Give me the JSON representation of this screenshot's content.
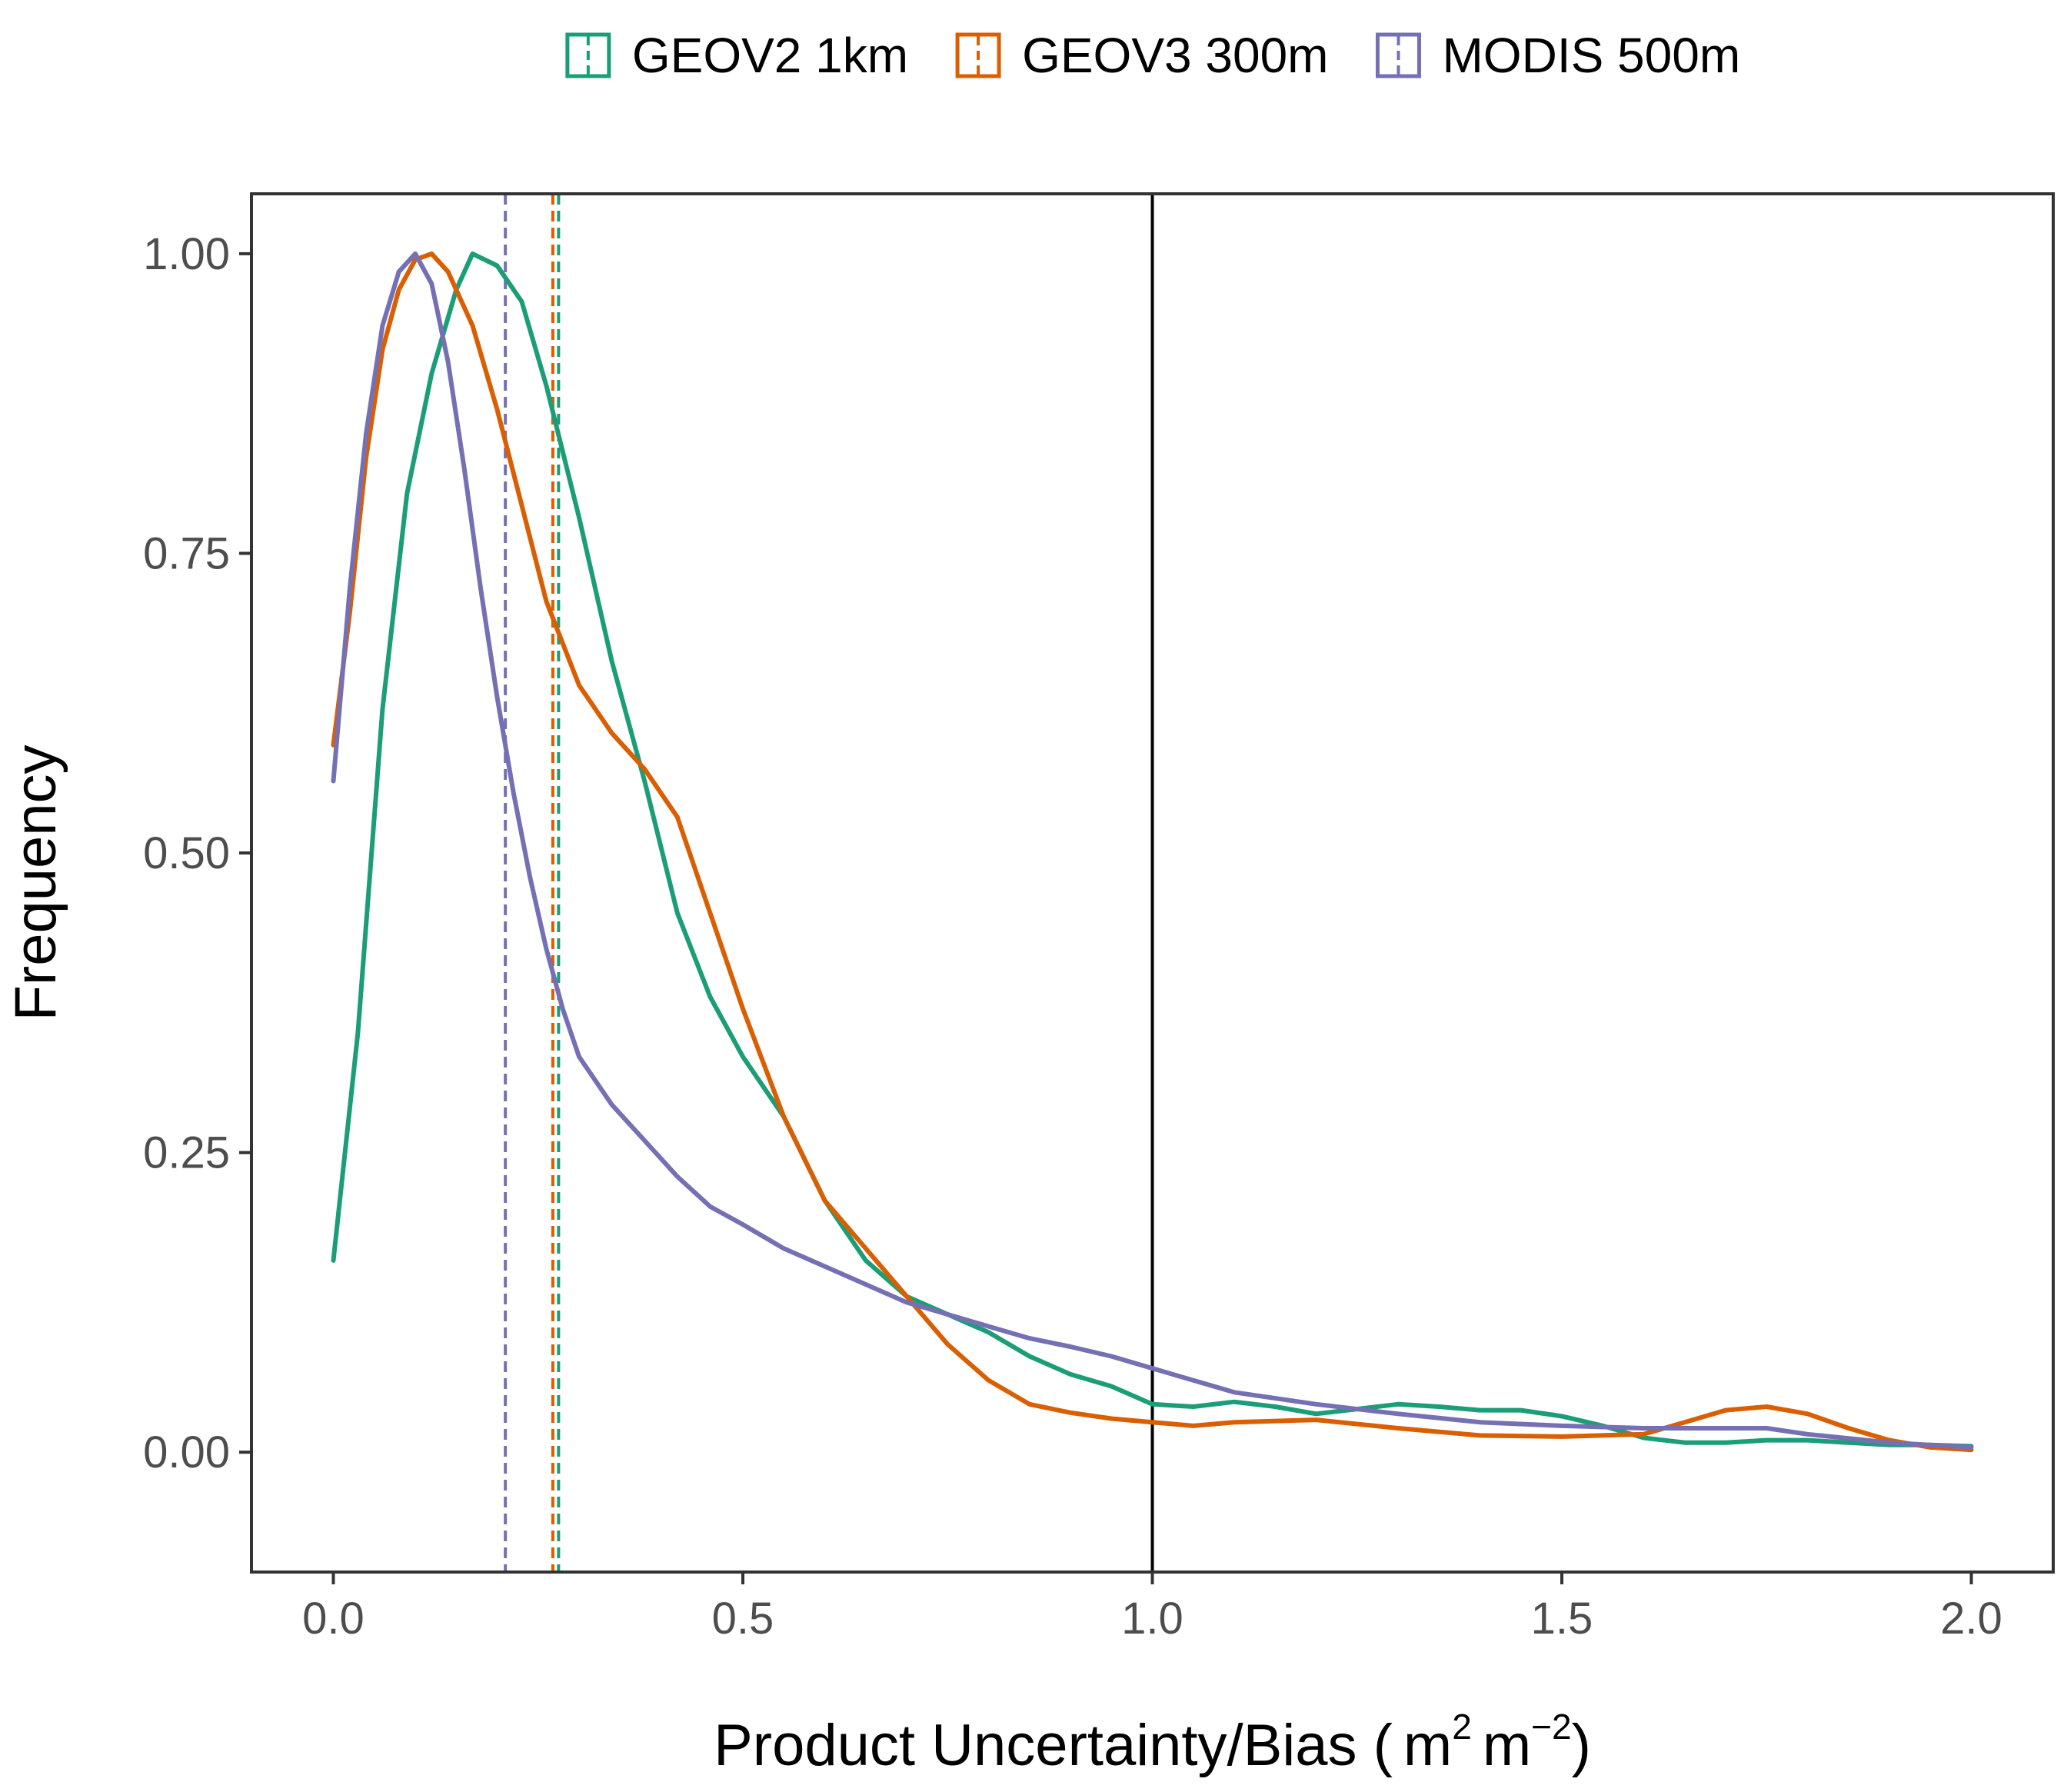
{
  "chart_data": {
    "type": "line",
    "xlabel": "Product Uncertainty/Bias (",
    "xlabel_units": {
      "base1": "m",
      "exp1": "2",
      "base2": "m",
      "exp2": "−2",
      "close": ")"
    },
    "ylabel": "Frequency",
    "xlim": [
      -0.1,
      2.1
    ],
    "ylim": [
      -0.1,
      1.05
    ],
    "x_ticks": [
      0.0,
      0.5,
      1.0,
      1.5,
      2.0
    ],
    "x_tick_labels": [
      "0.0",
      "0.5",
      "1.0",
      "1.5",
      "2.0"
    ],
    "y_ticks": [
      0.0,
      0.25,
      0.5,
      0.75,
      1.0
    ],
    "y_tick_labels": [
      "0.00",
      "0.25",
      "0.50",
      "0.75",
      "1.00"
    ],
    "reference_line": {
      "x": 1.0,
      "color": "#000000",
      "style": "solid"
    },
    "legend_position": "top",
    "series": [
      {
        "name": "GEOV2 1km",
        "color": "#1b9e77",
        "mean_line": 0.275,
        "points": [
          [
            0.0,
            0.16
          ],
          [
            0.03,
            0.35
          ],
          [
            0.06,
            0.62
          ],
          [
            0.09,
            0.8
          ],
          [
            0.12,
            0.9
          ],
          [
            0.15,
            0.97
          ],
          [
            0.17,
            1.0
          ],
          [
            0.2,
            0.99
          ],
          [
            0.23,
            0.96
          ],
          [
            0.26,
            0.89
          ],
          [
            0.3,
            0.78
          ],
          [
            0.34,
            0.66
          ],
          [
            0.38,
            0.56
          ],
          [
            0.42,
            0.45
          ],
          [
            0.46,
            0.38
          ],
          [
            0.5,
            0.33
          ],
          [
            0.55,
            0.28
          ],
          [
            0.6,
            0.21
          ],
          [
            0.65,
            0.16
          ],
          [
            0.7,
            0.13
          ],
          [
            0.75,
            0.115
          ],
          [
            0.8,
            0.1
          ],
          [
            0.85,
            0.08
          ],
          [
            0.9,
            0.065
          ],
          [
            0.95,
            0.055
          ],
          [
            1.0,
            0.04
          ],
          [
            1.05,
            0.038
          ],
          [
            1.1,
            0.042
          ],
          [
            1.15,
            0.038
          ],
          [
            1.2,
            0.032
          ],
          [
            1.25,
            0.036
          ],
          [
            1.3,
            0.04
          ],
          [
            1.35,
            0.038
          ],
          [
            1.4,
            0.035
          ],
          [
            1.45,
            0.035
          ],
          [
            1.5,
            0.03
          ],
          [
            1.55,
            0.022
          ],
          [
            1.6,
            0.012
          ],
          [
            1.65,
            0.008
          ],
          [
            1.7,
            0.008
          ],
          [
            1.75,
            0.01
          ],
          [
            1.8,
            0.01
          ],
          [
            1.85,
            0.008
          ],
          [
            1.9,
            0.006
          ],
          [
            1.95,
            0.006
          ],
          [
            2.0,
            0.005
          ]
        ]
      },
      {
        "name": "GEOV3 300m",
        "color": "#d95f02",
        "mean_line": 0.268,
        "points": [
          [
            0.0,
            0.59
          ],
          [
            0.02,
            0.7
          ],
          [
            0.04,
            0.83
          ],
          [
            0.06,
            0.92
          ],
          [
            0.08,
            0.97
          ],
          [
            0.1,
            0.995
          ],
          [
            0.12,
            1.0
          ],
          [
            0.14,
            0.985
          ],
          [
            0.17,
            0.94
          ],
          [
            0.2,
            0.87
          ],
          [
            0.23,
            0.79
          ],
          [
            0.26,
            0.71
          ],
          [
            0.3,
            0.64
          ],
          [
            0.34,
            0.6
          ],
          [
            0.38,
            0.57
          ],
          [
            0.42,
            0.53
          ],
          [
            0.46,
            0.45
          ],
          [
            0.5,
            0.37
          ],
          [
            0.55,
            0.28
          ],
          [
            0.6,
            0.21
          ],
          [
            0.65,
            0.17
          ],
          [
            0.7,
            0.13
          ],
          [
            0.75,
            0.09
          ],
          [
            0.8,
            0.06
          ],
          [
            0.85,
            0.04
          ],
          [
            0.9,
            0.033
          ],
          [
            0.95,
            0.028
          ],
          [
            1.0,
            0.025
          ],
          [
            1.05,
            0.022
          ],
          [
            1.1,
            0.025
          ],
          [
            1.2,
            0.027
          ],
          [
            1.3,
            0.02
          ],
          [
            1.4,
            0.014
          ],
          [
            1.5,
            0.013
          ],
          [
            1.6,
            0.015
          ],
          [
            1.65,
            0.025
          ],
          [
            1.7,
            0.035
          ],
          [
            1.75,
            0.038
          ],
          [
            1.8,
            0.032
          ],
          [
            1.85,
            0.02
          ],
          [
            1.9,
            0.01
          ],
          [
            1.95,
            0.004
          ],
          [
            2.0,
            0.002
          ]
        ]
      },
      {
        "name": "MODIS 500m",
        "color": "#7570b3",
        "mean_line": 0.21,
        "points": [
          [
            0.0,
            0.56
          ],
          [
            0.02,
            0.72
          ],
          [
            0.04,
            0.85
          ],
          [
            0.06,
            0.94
          ],
          [
            0.08,
            0.985
          ],
          [
            0.1,
            1.0
          ],
          [
            0.12,
            0.975
          ],
          [
            0.14,
            0.91
          ],
          [
            0.16,
            0.82
          ],
          [
            0.18,
            0.72
          ],
          [
            0.2,
            0.63
          ],
          [
            0.22,
            0.55
          ],
          [
            0.24,
            0.48
          ],
          [
            0.26,
            0.42
          ],
          [
            0.28,
            0.37
          ],
          [
            0.3,
            0.33
          ],
          [
            0.34,
            0.29
          ],
          [
            0.38,
            0.26
          ],
          [
            0.42,
            0.23
          ],
          [
            0.46,
            0.205
          ],
          [
            0.5,
            0.19
          ],
          [
            0.55,
            0.17
          ],
          [
            0.6,
            0.155
          ],
          [
            0.65,
            0.14
          ],
          [
            0.7,
            0.125
          ],
          [
            0.75,
            0.115
          ],
          [
            0.8,
            0.105
          ],
          [
            0.85,
            0.095
          ],
          [
            0.9,
            0.088
          ],
          [
            0.95,
            0.08
          ],
          [
            1.0,
            0.07
          ],
          [
            1.05,
            0.06
          ],
          [
            1.1,
            0.05
          ],
          [
            1.2,
            0.04
          ],
          [
            1.3,
            0.032
          ],
          [
            1.4,
            0.025
          ],
          [
            1.5,
            0.022
          ],
          [
            1.6,
            0.02
          ],
          [
            1.7,
            0.02
          ],
          [
            1.75,
            0.02
          ],
          [
            1.8,
            0.015
          ],
          [
            1.9,
            0.008
          ],
          [
            2.0,
            0.004
          ]
        ]
      }
    ]
  }
}
